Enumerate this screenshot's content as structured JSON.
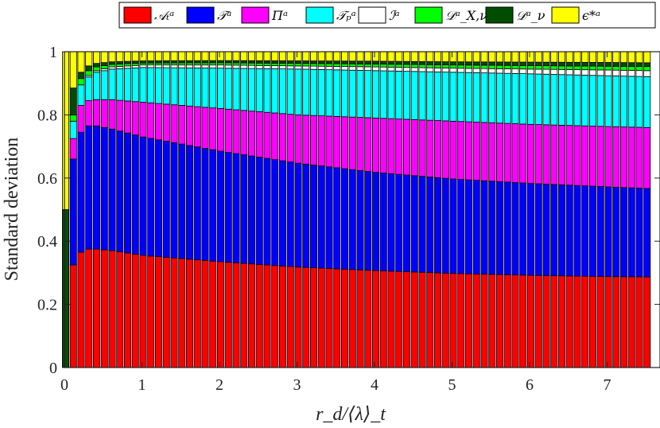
{
  "chart_data": {
    "type": "bar",
    "stacked": true,
    "title": "",
    "xlabel": "r_d/⟨λ⟩_t",
    "ylabel": "Standard deviation",
    "xlim": [
      0,
      7.6
    ],
    "ylim": [
      0,
      1
    ],
    "xticks": [
      0,
      1,
      2,
      3,
      4,
      5,
      6,
      7
    ],
    "yticks": [
      0,
      0.2,
      0.4,
      0.6,
      0.8,
      1
    ],
    "xtick_labels": [
      "0",
      "1",
      "2",
      "3",
      "4",
      "5",
      "6",
      "7"
    ],
    "ytick_labels": [
      "0",
      "0.2",
      "0.4",
      "0.6",
      "0.8",
      "1"
    ],
    "grid": false,
    "legend_position": "top",
    "series_order": [
      "A_t",
      "T",
      "Pi",
      "T_p",
      "I",
      "D_X",
      "D_nu",
      "eps"
    ],
    "legend": [
      {
        "key": "A_t",
        "label": "𝒜ₜᵃ",
        "color": "#ff0000"
      },
      {
        "key": "T",
        "label": "𝒯ᵃ",
        "color": "#0000ff"
      },
      {
        "key": "Pi",
        "label": "Πᵃ",
        "color": "#ff00ff"
      },
      {
        "key": "T_p",
        "label": "𝒯ₚᵃ",
        "color": "#00ffff"
      },
      {
        "key": "I",
        "label": "ℐᵃ",
        "color": "#ffffff"
      },
      {
        "key": "D_X",
        "label": "𝒟ᵃ_X,ν",
        "color": "#00ff00"
      },
      {
        "key": "D_nu",
        "label": "𝒟ᵃ_ν",
        "color": "#004d00"
      },
      {
        "key": "eps",
        "label": "ϵ*ᵃ",
        "color": "#ffff00"
      }
    ],
    "key_bars": [
      {
        "x": 0.0,
        "A_t": 0.0,
        "A_t_top": 0.0,
        "T_top": 0.0,
        "Pi_top": 0.0,
        "T_p_top": 0.0,
        "I_top": 0.0,
        "D_X_top": 0.0,
        "D_nu_top": 0.5,
        "eps_top": 1.0
      },
      {
        "x": 0.1,
        "A_t_top": 0.325,
        "T_top": 0.66,
        "Pi_top": 0.725,
        "T_p_top": 0.78,
        "I_top": 0.78,
        "D_X_top": 0.8,
        "D_nu_top": 0.885,
        "eps_top": 1.0
      },
      {
        "x": 0.2,
        "A_t_top": 0.365,
        "T_top": 0.745,
        "Pi_top": 0.83,
        "T_p_top": 0.895,
        "I_top": 0.895,
        "D_X_top": 0.915,
        "D_nu_top": 0.935,
        "eps_top": 1.0
      },
      {
        "x": 0.3,
        "A_t_top": 0.375,
        "T_top": 0.765,
        "Pi_top": 0.845,
        "T_p_top": 0.92,
        "I_top": 0.925,
        "D_X_top": 0.94,
        "D_nu_top": 0.955,
        "eps_top": 1.0
      },
      {
        "x": 0.4,
        "A_t_top": 0.375,
        "T_top": 0.765,
        "Pi_top": 0.848,
        "T_p_top": 0.935,
        "I_top": 0.94,
        "D_X_top": 0.952,
        "D_nu_top": 0.963,
        "eps_top": 1.0
      },
      {
        "x": 0.6,
        "A_t_top": 0.37,
        "T_top": 0.755,
        "Pi_top": 0.848,
        "T_p_top": 0.945,
        "I_top": 0.952,
        "D_X_top": 0.96,
        "D_nu_top": 0.968,
        "eps_top": 1.0
      },
      {
        "x": 1.0,
        "A_t_top": 0.355,
        "T_top": 0.73,
        "Pi_top": 0.84,
        "T_p_top": 0.95,
        "I_top": 0.958,
        "D_X_top": 0.964,
        "D_nu_top": 0.971,
        "eps_top": 1.0
      },
      {
        "x": 2.0,
        "A_t_top": 0.335,
        "T_top": 0.685,
        "Pi_top": 0.82,
        "T_p_top": 0.948,
        "I_top": 0.958,
        "D_X_top": 0.965,
        "D_nu_top": 0.972,
        "eps_top": 1.0
      },
      {
        "x": 3.0,
        "A_t_top": 0.318,
        "T_top": 0.647,
        "Pi_top": 0.8,
        "T_p_top": 0.945,
        "I_top": 0.955,
        "D_X_top": 0.963,
        "D_nu_top": 0.971,
        "eps_top": 1.0
      },
      {
        "x": 4.0,
        "A_t_top": 0.307,
        "T_top": 0.618,
        "Pi_top": 0.79,
        "T_p_top": 0.94,
        "I_top": 0.952,
        "D_X_top": 0.961,
        "D_nu_top": 0.97,
        "eps_top": 1.0
      },
      {
        "x": 5.0,
        "A_t_top": 0.298,
        "T_top": 0.597,
        "Pi_top": 0.78,
        "T_p_top": 0.935,
        "I_top": 0.948,
        "D_X_top": 0.958,
        "D_nu_top": 0.968,
        "eps_top": 1.0
      },
      {
        "x": 6.0,
        "A_t_top": 0.292,
        "T_top": 0.583,
        "Pi_top": 0.77,
        "T_p_top": 0.93,
        "I_top": 0.945,
        "D_X_top": 0.956,
        "D_nu_top": 0.967,
        "eps_top": 1.0
      },
      {
        "x": 7.0,
        "A_t_top": 0.288,
        "T_top": 0.572,
        "Pi_top": 0.763,
        "T_p_top": 0.924,
        "I_top": 0.942,
        "D_X_top": 0.954,
        "D_nu_top": 0.966,
        "eps_top": 1.0
      },
      {
        "x": 7.5,
        "A_t_top": 0.287,
        "T_top": 0.567,
        "Pi_top": 0.76,
        "T_p_top": 0.921,
        "I_top": 0.94,
        "D_X_top": 0.953,
        "D_nu_top": 0.965,
        "eps_top": 1.0
      }
    ],
    "bar_x": [
      0.0,
      0.1,
      0.2,
      0.3,
      0.4,
      0.5,
      0.6,
      0.7,
      0.8,
      0.9,
      1.0,
      1.1,
      1.2,
      1.3,
      1.4,
      1.5,
      1.6,
      1.7,
      1.8,
      1.9,
      2.0,
      2.1,
      2.2,
      2.3,
      2.4,
      2.5,
      2.6,
      2.7,
      2.8,
      2.9,
      3.0,
      3.1,
      3.2,
      3.3,
      3.4,
      3.5,
      3.6,
      3.7,
      3.8,
      3.9,
      4.0,
      4.1,
      4.2,
      4.3,
      4.4,
      4.5,
      4.6,
      4.7,
      4.8,
      4.9,
      5.0,
      5.1,
      5.2,
      5.3,
      5.4,
      5.5,
      5.6,
      5.7,
      5.8,
      5.9,
      6.0,
      6.1,
      6.2,
      6.3,
      6.4,
      6.5,
      6.6,
      6.7,
      6.8,
      6.9,
      7.0,
      7.1,
      7.2,
      7.3,
      7.4,
      7.5
    ]
  }
}
